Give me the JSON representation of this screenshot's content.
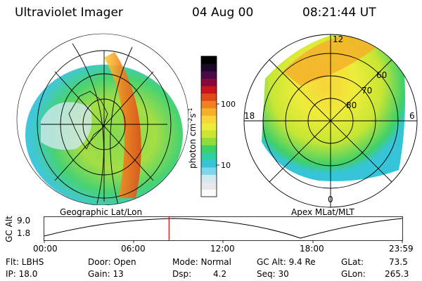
{
  "header": {
    "instrument": "Ultraviolet Imager",
    "date": "04 Aug 00",
    "time": "08:21:44 UT"
  },
  "panels": {
    "left_label": "Geographic Lat/Lon",
    "right_label": "Apex MLat/MLT",
    "mlt_labels": {
      "top": "12",
      "left": "18",
      "right": "6",
      "bottom": "0"
    },
    "mlat_rings": [
      "60",
      "70",
      "80"
    ]
  },
  "colorbar": {
    "label": "photon cm",
    "label_sup1": "-2",
    "label_mid": "s",
    "label_sup2": "-1",
    "tick_high": "100",
    "tick_low": "10",
    "colors": [
      "#fafafa",
      "#e8e8e8",
      "#cfe9f0",
      "#7fd6ea",
      "#36c4d8",
      "#2fcfa6",
      "#3fd06a",
      "#8fdc3a",
      "#c8e634",
      "#eeec3a",
      "#f9d43a",
      "#f5b02a",
      "#f08020",
      "#e04a18",
      "#c8141c",
      "#8a0838",
      "#4a0a48",
      "#1a0826",
      "#000000"
    ]
  },
  "altitude_plot": {
    "ylabel": "GC Alt",
    "y_ticks": [
      "9.0",
      "1.8"
    ],
    "x_ticks": [
      "00:00",
      "06:00",
      "12:00",
      "18:00",
      "23:59"
    ],
    "current_time_hours": 8.36
  },
  "status": {
    "flt": "Flt: LBHS",
    "ip": "IP: 18.0",
    "door": "Door: Open",
    "gain": "Gain: 13",
    "mode": "Mode: Normal",
    "dsp_label": "Dsp:",
    "dsp_value": "4.2",
    "gc_alt": "GC Alt: 9.4 Re",
    "seq": "Seq: 30",
    "glat_label": "GLat:",
    "glat_value": "73.5",
    "glon_label": "GLon:",
    "glon_value": "265.3"
  }
}
